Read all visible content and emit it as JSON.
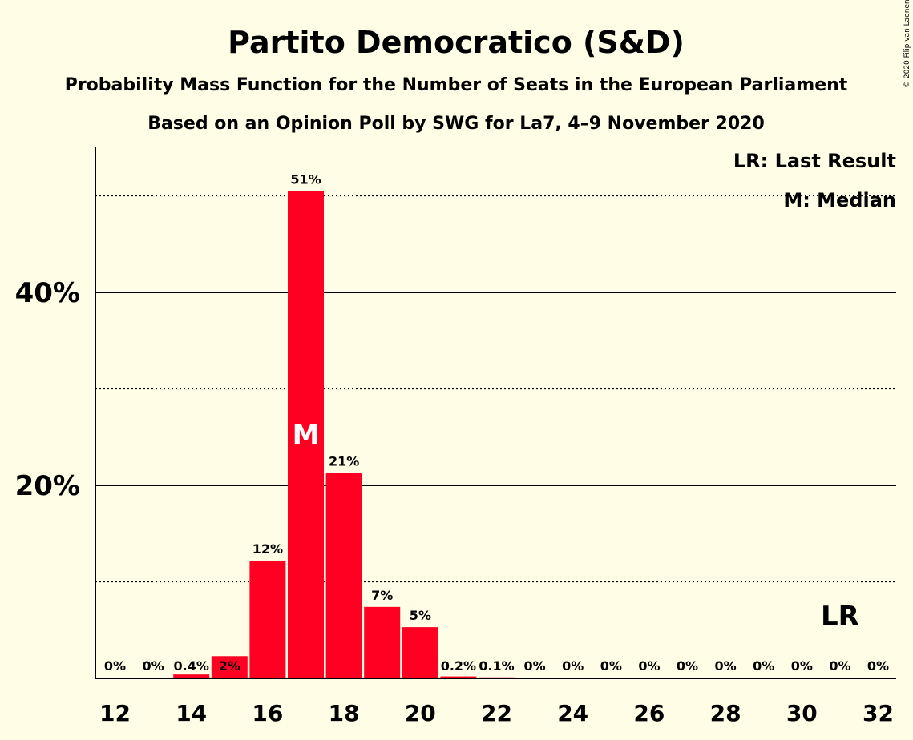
{
  "copyright": "© 2020 Filip van Laenen",
  "chart_data": {
    "type": "bar",
    "title": "Partito Democratico (S&D)",
    "subtitle": "Probability Mass Function for the Number of Seats in the European Parliament",
    "subtitle2": "Based on an Opinion Poll by SWG for La7, 4–9 November 2020",
    "x": [
      12,
      13,
      14,
      15,
      16,
      17,
      18,
      19,
      20,
      21,
      22,
      23,
      24,
      25,
      26,
      27,
      28,
      29,
      30,
      31,
      32
    ],
    "values": [
      0,
      0,
      0.4,
      2.3,
      12.2,
      50.5,
      21.3,
      7.4,
      5.3,
      0.2,
      0.1,
      0,
      0,
      0,
      0,
      0,
      0,
      0,
      0,
      0,
      0
    ],
    "data_labels": [
      "0%",
      "0%",
      "0.4%",
      "2%",
      "12%",
      "51%",
      "21%",
      "7%",
      "5%",
      "0.2%",
      "0.1%",
      "0%",
      "0%",
      "0%",
      "0%",
      "0%",
      "0%",
      "0%",
      "0%",
      "0%",
      "0%"
    ],
    "xticks": [
      12,
      14,
      16,
      18,
      20,
      22,
      24,
      26,
      28,
      30,
      32
    ],
    "yticks_labeled": [
      {
        "value": 20,
        "label": "20%"
      },
      {
        "value": 40,
        "label": "40%"
      }
    ],
    "ygrid_dotted": [
      10,
      30,
      50
    ],
    "ylim": [
      0,
      55
    ],
    "bar_color": "#ff0022",
    "median": {
      "x": 17,
      "label": "M"
    },
    "last_result": {
      "x": 31,
      "label": "LR"
    },
    "legend": [
      "LR: Last Result",
      "M: Median"
    ],
    "legend_position": "top-right"
  }
}
